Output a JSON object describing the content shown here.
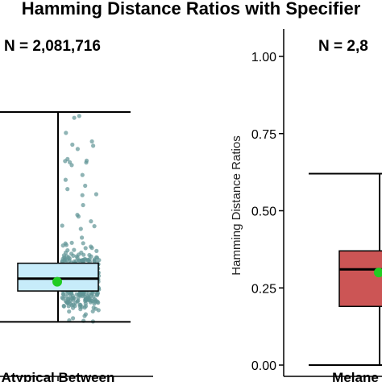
{
  "chart": {
    "title": "Hamming Distance Ratios with Specifier",
    "colors": {
      "accent_point": "#22cc22",
      "jitter": "#5f9496"
    }
  },
  "chart_data": [
    {
      "type": "box",
      "annotation": "N = 2,081,716",
      "categories": [
        "Atypical Between"
      ],
      "ylabel": "",
      "ylim": [
        0,
        1.05
      ],
      "box": {
        "whisker_low": 0.14,
        "q1": 0.24,
        "median": 0.28,
        "q3": 0.33,
        "whisker_high": 0.82,
        "mean": 0.27
      },
      "box_color": "#c7ecfa",
      "jitter_shown": true
    },
    {
      "type": "box",
      "annotation": "N = 2,8",
      "categories": [
        "Melane"
      ],
      "ylabel": "Hamming Distance Ratios",
      "ylim": [
        0,
        1.05
      ],
      "yticks": [
        "0.00",
        "0.25",
        "0.50",
        "0.75",
        "1.00"
      ],
      "ytick_values": [
        0,
        0.25,
        0.5,
        0.75,
        1.0
      ],
      "box": {
        "whisker_low": 0.0,
        "q1": 0.19,
        "median": 0.31,
        "q3": 0.37,
        "whisker_high": 0.62,
        "mean": 0.3
      },
      "box_color": "#cc5555",
      "jitter_shown": false
    }
  ]
}
